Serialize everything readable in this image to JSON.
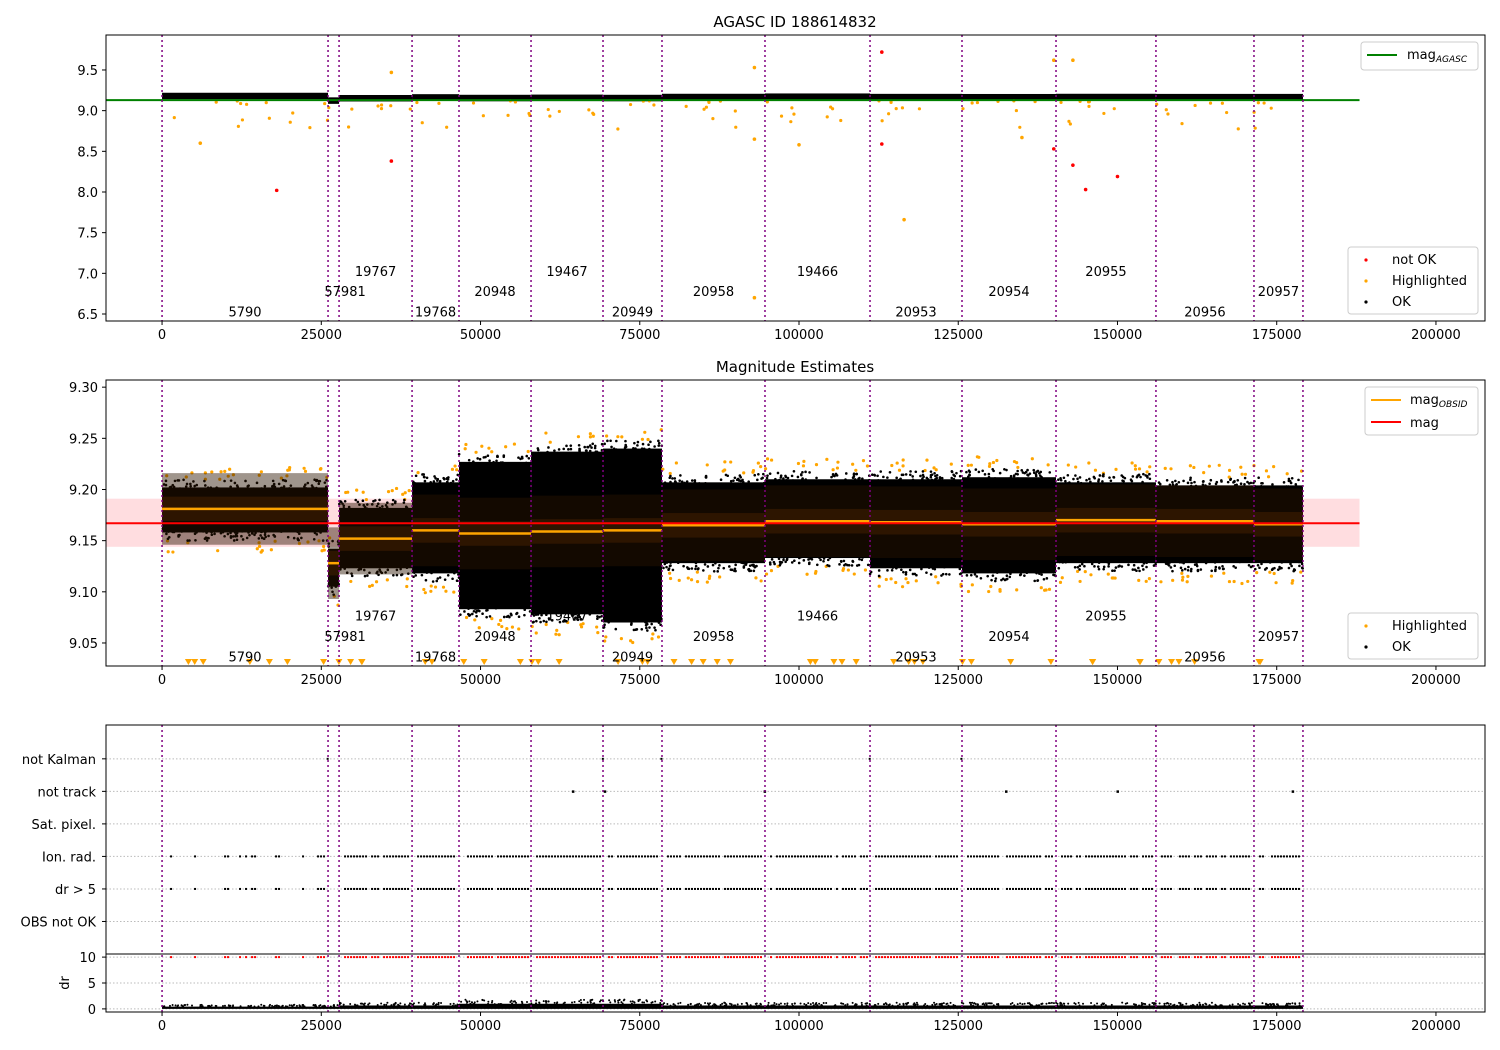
{
  "chart_data": [
    {
      "type": "scatter",
      "title": "AGASC ID 188614832",
      "xlabel": "",
      "ylabel": "",
      "xlim": [
        -8800,
        207700
      ],
      "ylim": [
        6.414,
        9.93
      ],
      "xticks": [
        "0",
        "25000",
        "50000",
        "75000",
        "100000",
        "125000",
        "150000",
        "175000",
        "200000"
      ],
      "yticks": [
        "6.5",
        "7.0",
        "7.5",
        "8.0",
        "8.5",
        "9.0",
        "9.5"
      ],
      "mag_agasc": 9.13,
      "mag_agasc_xrange": [
        -8800,
        188000
      ],
      "legend_top": {
        "label": "mag",
        "sub": "AGASC",
        "color": "#008000",
        "placement": "top-right"
      },
      "legend_bottom": {
        "placement": "bottom-right",
        "items": [
          {
            "label": "not OK",
            "color": "#ff0000"
          },
          {
            "label": "Highlighted",
            "color": "#ffa500"
          },
          {
            "label": "OK",
            "color": "#000000"
          }
        ]
      },
      "not_ok_points": [
        [
          18000,
          8.02
        ],
        [
          36000,
          8.38
        ],
        [
          113000,
          9.72
        ],
        [
          113000,
          8.59
        ],
        [
          140000,
          8.53
        ],
        [
          143000,
          8.33
        ],
        [
          145000,
          8.03
        ],
        [
          150000,
          8.19
        ]
      ],
      "highlighted_outliers": [
        [
          93000,
          9.53
        ],
        [
          36000,
          9.47
        ],
        [
          93000,
          8.65
        ],
        [
          93000,
          6.7
        ],
        [
          116500,
          7.66
        ],
        [
          140000,
          9.62
        ],
        [
          143000,
          9.62
        ],
        [
          135000,
          8.67
        ],
        [
          6000,
          8.6
        ],
        [
          100000,
          8.58
        ]
      ]
    },
    {
      "type": "scatter",
      "title": "Magnitude Estimates",
      "xlim": [
        -8800,
        207700
      ],
      "ylim": [
        9.0275,
        9.307
      ],
      "xticks": [
        "0",
        "25000",
        "50000",
        "75000",
        "100000",
        "125000",
        "150000",
        "175000",
        "200000"
      ],
      "yticks": [
        "9.05",
        "9.10",
        "9.15",
        "9.20",
        "9.25",
        "9.30"
      ],
      "mag": 9.167,
      "mag_band": [
        9.144,
        9.191
      ],
      "mag_xrange": [
        -8800,
        188000
      ],
      "legend_top": {
        "placement": "top-right",
        "items": [
          {
            "label": "mag",
            "sub": "OBSID",
            "color": "#ffa500"
          },
          {
            "label": "mag",
            "sub": "",
            "color": "#ff0000"
          }
        ]
      },
      "legend_bottom": {
        "placement": "bottom-right",
        "items": [
          {
            "label": "Highlighted",
            "color": "#ffa500"
          },
          {
            "label": "OK",
            "color": "#000000"
          }
        ]
      }
    },
    {
      "type": "scatter",
      "categories": [
        "OBS not OK",
        "dr > 5",
        "Ion. rad.",
        "Sat. pixel.",
        "not track",
        "not Kalman"
      ],
      "dr_ylabel": "dr",
      "dr_yticks": [
        "0",
        "5",
        "10"
      ],
      "xticks": [
        "0",
        "25000",
        "50000",
        "75000",
        "100000",
        "125000",
        "150000",
        "175000",
        "200000"
      ],
      "not_track_x": [
        64500,
        69500,
        94600,
        132500,
        150000,
        177500
      ],
      "not_kalman_x": [
        26000,
        69200,
        78400,
        111100,
        125500
      ]
    }
  ],
  "segments": [
    {
      "obsid": "5790",
      "start": 0,
      "end": 26060,
      "mag": 9.181,
      "ok": [
        9.15,
        9.21
      ],
      "level": 0
    },
    {
      "obsid": "57981",
      "start": 26060,
      "end": 27790,
      "mag": 9.128,
      "ok": [
        9.097,
        9.15
      ],
      "level": 1
    },
    {
      "obsid": "19767",
      "start": 27790,
      "end": 39250,
      "mag": 9.152,
      "ok": [
        9.115,
        9.19
      ],
      "level": 2
    },
    {
      "obsid": "19768",
      "start": 39250,
      "end": 46620,
      "mag": 9.16,
      "ok": [
        9.11,
        9.215
      ],
      "level": 0
    },
    {
      "obsid": "20948",
      "start": 46620,
      "end": 57930,
      "mag": 9.157,
      "ok": [
        9.075,
        9.235
      ],
      "level": 1
    },
    {
      "obsid": "19467",
      "start": 57930,
      "end": 69230,
      "mag": 9.159,
      "ok": [
        9.07,
        9.245
      ],
      "level": 2
    },
    {
      "obsid": "20949",
      "start": 69230,
      "end": 78490,
      "mag": 9.16,
      "ok": [
        9.062,
        9.248
      ],
      "level": 0
    },
    {
      "obsid": "20958",
      "start": 78490,
      "end": 94660,
      "mag": 9.165,
      "ok": [
        9.12,
        9.215
      ],
      "level": 1
    },
    {
      "obsid": "19466",
      "start": 94660,
      "end": 111150,
      "mag": 9.169,
      "ok": [
        9.125,
        9.218
      ],
      "level": 2
    },
    {
      "obsid": "20953",
      "start": 111150,
      "end": 125590,
      "mag": 9.168,
      "ok": [
        9.115,
        9.218
      ],
      "level": 0
    },
    {
      "obsid": "20954",
      "start": 125590,
      "end": 140350,
      "mag": 9.166,
      "ok": [
        9.11,
        9.22
      ],
      "level": 1
    },
    {
      "obsid": "20955",
      "start": 140350,
      "end": 156040,
      "mag": 9.17,
      "ok": [
        9.12,
        9.215
      ],
      "level": 2
    },
    {
      "obsid": "20956",
      "start": 156040,
      "end": 171430,
      "mag": 9.169,
      "ok": [
        9.12,
        9.212
      ],
      "level": 0
    },
    {
      "obsid": "20957",
      "start": 171430,
      "end": 179120,
      "mag": 9.166,
      "ok": [
        9.12,
        9.212
      ],
      "level": 1
    }
  ],
  "colors": {
    "ok": "#000000",
    "highlighted": "#ffa500",
    "not_ok": "#ff0000",
    "obsid_line": "#800080",
    "agasc": "#008000",
    "mag": "#ff0000"
  }
}
